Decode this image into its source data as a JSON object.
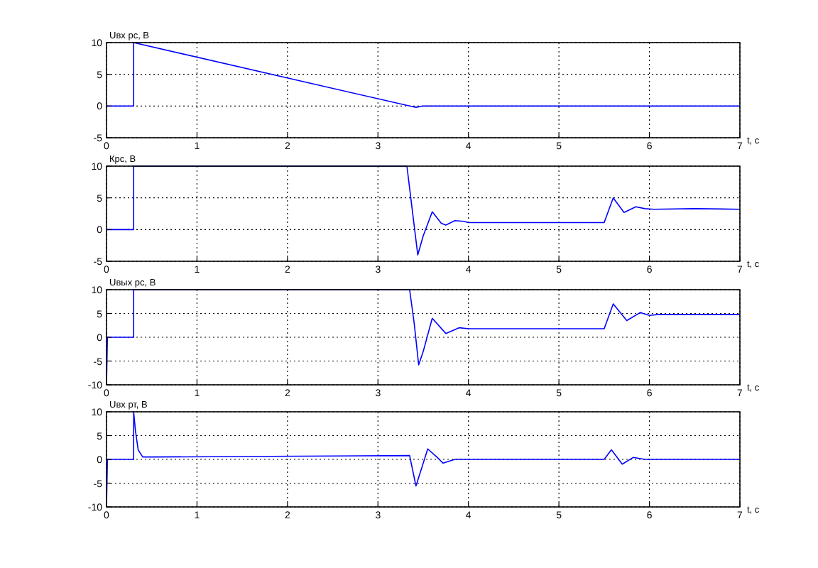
{
  "chart_data": [
    {
      "type": "line",
      "ylabel": "Uвх рс, В",
      "xlabel": "t, с",
      "xlim": [
        0,
        7
      ],
      "xticks": [
        0,
        1,
        2,
        3,
        4,
        5,
        6,
        7
      ],
      "ylim": [
        -5,
        10
      ],
      "yticks": [
        -5,
        0,
        5,
        10
      ],
      "grid": true,
      "series": [
        {
          "color": "#0000ff",
          "x": [
            0,
            0.3,
            0.3,
            3.35,
            3.42,
            3.5,
            7
          ],
          "values": [
            0,
            0,
            10,
            0,
            -0.2,
            0,
            0
          ]
        }
      ]
    },
    {
      "type": "line",
      "ylabel": "Крс, В",
      "xlabel": "t, с",
      "xlim": [
        0,
        7
      ],
      "xticks": [
        0,
        1,
        2,
        3,
        4,
        5,
        6,
        7
      ],
      "ylim": [
        -5,
        10
      ],
      "yticks": [
        -5,
        0,
        5,
        10
      ],
      "grid": true,
      "series": [
        {
          "color": "#0000ff",
          "x": [
            0,
            0.3,
            0.3,
            3.32,
            3.38,
            3.44,
            3.5,
            3.6,
            3.7,
            3.75,
            3.85,
            3.95,
            4.0,
            5.5,
            5.6,
            5.72,
            5.85,
            5.95,
            6.05,
            6.5,
            7
          ],
          "values": [
            0,
            0,
            10,
            10,
            3,
            -4,
            -1,
            2.8,
            1,
            0.7,
            1.4,
            1.3,
            1.1,
            1.1,
            5,
            2.7,
            3.6,
            3.3,
            3.2,
            3.3,
            3.2
          ]
        }
      ]
    },
    {
      "type": "line",
      "ylabel": "Uвых рс, В",
      "xlabel": "t, с",
      "xlim": [
        0,
        7
      ],
      "xticks": [
        0,
        1,
        2,
        3,
        4,
        5,
        6,
        7
      ],
      "ylim": [
        -10,
        10
      ],
      "yticks": [
        -10,
        -5,
        0,
        5,
        10
      ],
      "grid": true,
      "series": [
        {
          "color": "#0000ff",
          "x": [
            0,
            0.01,
            0.3,
            0.3,
            3.35,
            3.4,
            3.45,
            3.5,
            3.6,
            3.75,
            3.9,
            4,
            5.5,
            5.6,
            5.75,
            5.9,
            6.0,
            6.1,
            7
          ],
          "values": [
            -10,
            0,
            0,
            10,
            10,
            3,
            -5.8,
            -3,
            4,
            0.8,
            2,
            1.8,
            1.8,
            7,
            3.5,
            5.2,
            4.6,
            4.8,
            4.8
          ]
        }
      ]
    },
    {
      "type": "line",
      "ylabel": "Uвх рт, В",
      "xlabel": "t, с",
      "xlim": [
        0,
        7
      ],
      "xticks": [
        0,
        1,
        2,
        3,
        4,
        5,
        6,
        7
      ],
      "ylim": [
        -10,
        10
      ],
      "yticks": [
        -10,
        -5,
        0,
        5,
        10
      ],
      "grid": true,
      "series": [
        {
          "color": "#0000ff",
          "x": [
            0,
            0.01,
            0.3,
            0.3,
            0.32,
            0.35,
            0.4,
            0.5,
            3.35,
            3.42,
            3.48,
            3.55,
            3.65,
            3.72,
            3.85,
            5.5,
            5.58,
            5.7,
            5.82,
            5.95,
            7
          ],
          "values": [
            -10,
            0,
            0,
            10,
            6,
            2,
            0.5,
            0.5,
            0.8,
            -5.6,
            -2,
            2.2,
            0.5,
            -0.8,
            0,
            0,
            2,
            -1,
            0.4,
            0,
            0
          ]
        }
      ]
    }
  ]
}
